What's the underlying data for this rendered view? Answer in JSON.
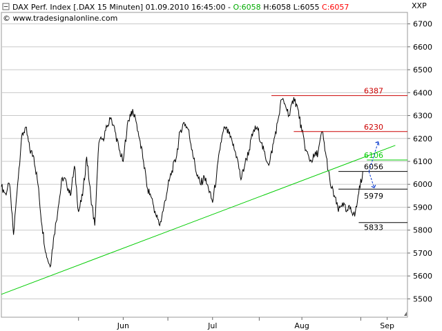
{
  "header": {
    "title": "DAX Perf. Index [.DAX  15 Minuten] 01.09.2010 16:45:00",
    "open_label": "O:6058",
    "high_label": "H:6058",
    "low_label": "L:6055",
    "close_label": "C:6057",
    "copyright": "© www.tradesignalonline.com",
    "axis_unit": "XXP",
    "open_color": "#00aa00",
    "close_color": "#ff0000",
    "text_color": "#000000"
  },
  "chart_data": {
    "type": "line",
    "title": "DAX Perf. Index [.DAX  15 Minuten]",
    "ylim": [
      5420,
      6750
    ],
    "y_ticks": [
      5500,
      5600,
      5700,
      5800,
      5900,
      6000,
      6100,
      6200,
      6300,
      6400,
      6500,
      6600,
      6700
    ],
    "x_tick_labels": [
      "Jun",
      "Jul",
      "Aug",
      "Sep"
    ],
    "x_tick_positions": [
      0.3,
      0.52,
      0.74,
      0.95
    ],
    "grid": "horizontal",
    "series": [
      {
        "color": "#000000",
        "x": [
          0.0,
          0.01,
          0.02,
          0.03,
          0.04,
          0.05,
          0.06,
          0.07,
          0.08,
          0.09,
          0.1,
          0.11,
          0.12,
          0.13,
          0.14,
          0.15,
          0.16,
          0.17,
          0.18,
          0.19,
          0.2,
          0.21,
          0.22,
          0.23,
          0.24,
          0.25,
          0.26,
          0.27,
          0.28,
          0.29,
          0.3,
          0.31,
          0.32,
          0.33,
          0.34,
          0.35,
          0.36,
          0.37,
          0.38,
          0.39,
          0.4,
          0.41,
          0.42,
          0.43,
          0.44,
          0.45,
          0.46,
          0.47,
          0.48,
          0.49,
          0.5,
          0.51,
          0.52,
          0.53,
          0.54,
          0.55,
          0.56,
          0.57,
          0.58,
          0.59,
          0.6,
          0.61,
          0.62,
          0.63,
          0.64,
          0.65,
          0.66,
          0.67,
          0.68,
          0.69,
          0.7,
          0.71,
          0.72,
          0.73,
          0.74,
          0.75,
          0.76,
          0.77,
          0.78,
          0.79,
          0.8,
          0.81,
          0.82,
          0.83,
          0.84,
          0.85,
          0.86,
          0.87,
          0.88,
          0.89
        ],
        "y": [
          5990,
          5960,
          6000,
          5780,
          6000,
          6210,
          6250,
          6150,
          6120,
          6000,
          5820,
          5700,
          5640,
          5780,
          5900,
          6030,
          6010,
          5950,
          6080,
          5880,
          5950,
          6120,
          5950,
          5820,
          6180,
          6200,
          6250,
          6290,
          6230,
          6150,
          6100,
          6260,
          6320,
          6290,
          6200,
          6100,
          5980,
          5940,
          5870,
          5820,
          5900,
          5990,
          6060,
          6110,
          6230,
          6270,
          6240,
          6150,
          6050,
          6000,
          6030,
          5980,
          5920,
          6040,
          6180,
          6250,
          6220,
          6170,
          6120,
          6020,
          6090,
          6150,
          6230,
          6250,
          6180,
          6120,
          6090,
          6180,
          6270,
          6370,
          6340,
          6300,
          6380,
          6330,
          6230,
          6150,
          6100,
          6120,
          6140,
          6230,
          6120,
          6000,
          5950,
          5880,
          5920,
          5880,
          5900,
          5860,
          5960,
          6056
        ]
      },
      {
        "color": "#00cc00",
        "name": "",
        "x": [
          0.0,
          0.97
        ],
        "y": [
          5520,
          6170
        ]
      }
    ],
    "levels": [
      {
        "label": "6387",
        "value": 6387,
        "color": "#cc0000",
        "x_start": 0.665
      },
      {
        "label": "6230",
        "value": 6230,
        "color": "#cc0000",
        "x_start": 0.72
      },
      {
        "label": "6106",
        "value": 6106,
        "color": "#00cc00",
        "x_start": 0.9
      },
      {
        "label": "6056",
        "value": 6056,
        "color": "#000000",
        "x_start": 0.83
      },
      {
        "label": "5979",
        "value": 5979,
        "color": "#000000",
        "x_start": 0.83
      },
      {
        "label": "5833",
        "value": 5833,
        "color": "#000000",
        "x_start": 0.88
      }
    ]
  }
}
